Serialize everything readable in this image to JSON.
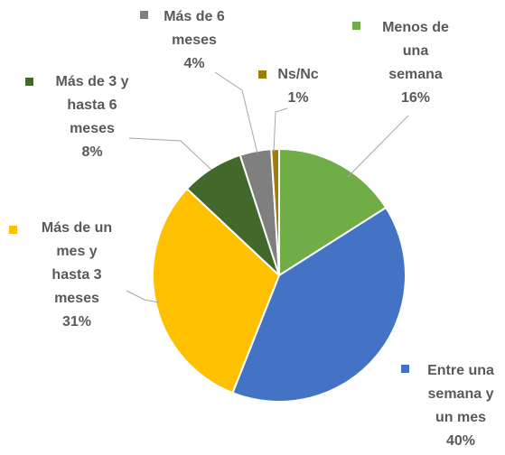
{
  "chart_data": {
    "type": "pie",
    "categories": [
      "Menos de\nuna\nsemana",
      "Entre una\nsemana y\nun mes",
      "Más de un\nmes y\nhasta 3\nmeses",
      "Más de 3 y\nhasta 6\nmeses",
      "Más de 6\nmeses",
      "Ns/Nc"
    ],
    "values": [
      16,
      40,
      31,
      8,
      4,
      1
    ],
    "value_labels": [
      "16%",
      "40%",
      "31%",
      "8%",
      "4%",
      "1%"
    ],
    "colors": [
      "#70ad47",
      "#4472c4",
      "#ffc000",
      "#43682b",
      "#7f7f7f",
      "#a07c0c"
    ]
  }
}
